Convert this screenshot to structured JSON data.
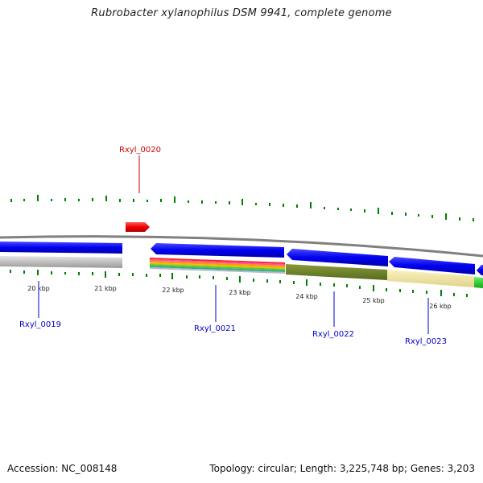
{
  "title": "Rubrobacter xylanophilus DSM 9941, complete genome",
  "footer": {
    "accession": "Accession: NC_008148",
    "summary": "Topology: circular; Length: 3,225,748 bp; Genes: 3,203"
  },
  "colors": {
    "forward_gene": "#ff0000",
    "reverse_gene": "#0000ff",
    "gc_tick": "#008000",
    "backbone": "#808080",
    "label_forward": "#cc0000",
    "label_reverse": "#0000cc"
  },
  "ticks": [
    "20 kbp",
    "21 kbp",
    "22 kbp",
    "23 kbp",
    "24 kbp",
    "25 kbp",
    "26 kbp"
  ],
  "genes": [
    {
      "name": "Rxyl_0019",
      "strand": "-"
    },
    {
      "name": "Rxyl_0020",
      "strand": "+"
    },
    {
      "name": "Rxyl_0021",
      "strand": "-"
    },
    {
      "name": "Rxyl_0022",
      "strand": "-"
    },
    {
      "name": "Rxyl_0023",
      "strand": "-"
    }
  ]
}
